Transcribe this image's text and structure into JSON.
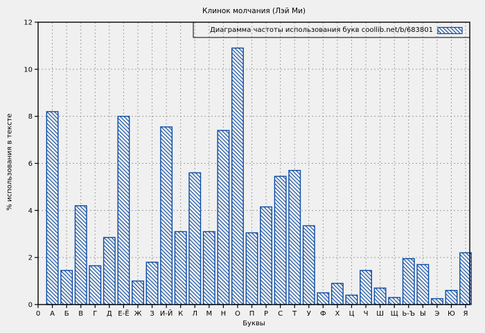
{
  "chart_data": {
    "type": "bar",
    "title": "Клинок молчания (Лэй Ми)",
    "legend": "Диаграмма частоты использования букв coollib.net/b/683801",
    "legend_position": "top-right",
    "xlabel": "Буквы",
    "ylabel": "% использования в тексте",
    "origin_tick_label": "0",
    "categories": [
      "А",
      "Б",
      "В",
      "Г",
      "Д",
      "Е-Ё",
      "Ж",
      "З",
      "И-Й",
      "К",
      "Л",
      "М",
      "Н",
      "О",
      "П",
      "Р",
      "С",
      "Т",
      "У",
      "Ф",
      "Х",
      "Ц",
      "Ч",
      "Ш",
      "Щ",
      "Ь-Ъ",
      "Ы",
      "Э",
      "Ю",
      "Я"
    ],
    "values": [
      8.2,
      1.45,
      4.2,
      1.65,
      2.85,
      8.0,
      1.0,
      1.8,
      7.55,
      3.1,
      5.6,
      3.1,
      7.4,
      10.9,
      3.05,
      4.15,
      5.45,
      5.7,
      3.35,
      0.5,
      0.9,
      0.4,
      1.45,
      0.7,
      0.3,
      1.95,
      1.7,
      0.25,
      0.6,
      2.2
    ],
    "yticks": [
      0,
      2,
      4,
      6,
      8,
      10,
      12
    ],
    "ylim": [
      0,
      12
    ],
    "grid": true,
    "hatch": "backslash-diagonal",
    "colors": {
      "bar_edge": "#0c4ba6",
      "bar_hatch": "#0c4ba6",
      "background": "#f0f0f0",
      "grid": "#9e9e9e",
      "frame": "#000000",
      "text": "#000000"
    }
  }
}
